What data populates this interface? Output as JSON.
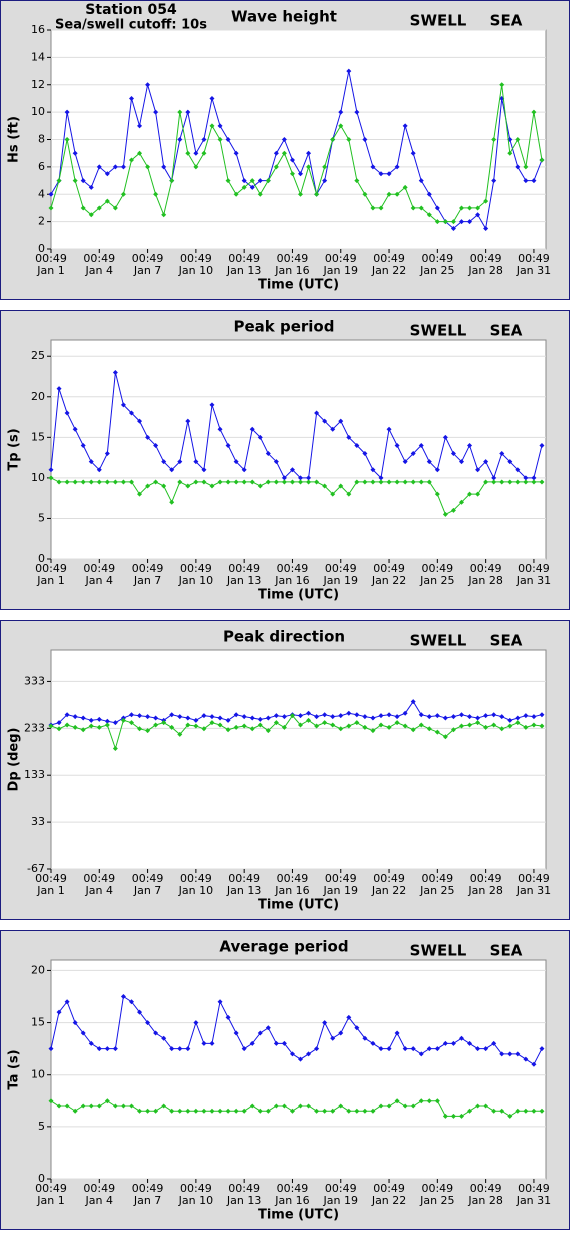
{
  "chart_data": [
    {
      "type": "line",
      "title": "Wave height",
      "ylabel": "Hs (ft)",
      "xlabel": "Time (UTC)",
      "annotations": [
        "Station 054",
        "Sea/swell cutoff: 10s"
      ],
      "grid": true,
      "xlim": [
        1,
        31.75
      ],
      "ylim": [
        0,
        16
      ],
      "yticks": [
        0,
        2,
        4,
        6,
        8,
        10,
        12,
        14,
        16
      ],
      "xticks": [
        {
          "value": 1,
          "label": "00:49\nJan 1"
        },
        {
          "value": 4,
          "label": "00:49\nJan 4"
        },
        {
          "value": 7,
          "label": "00:49\nJan 7"
        },
        {
          "value": 10,
          "label": "00:49\nJan 10"
        },
        {
          "value": 13,
          "label": "00:49\nJan 13"
        },
        {
          "value": 16,
          "label": "00:49\nJan 16"
        },
        {
          "value": 19,
          "label": "00:49\nJan 19"
        },
        {
          "value": 22,
          "label": "00:49\nJan 22"
        },
        {
          "value": 25,
          "label": "00:49\nJan 25"
        },
        {
          "value": 28,
          "label": "00:49\nJan 28"
        },
        {
          "value": 31,
          "label": "00:49\nJan 31"
        }
      ],
      "x": [
        1,
        1.5,
        2,
        2.5,
        3,
        3.5,
        4,
        4.5,
        5,
        5.5,
        6,
        6.5,
        7,
        7.5,
        8,
        8.5,
        9,
        9.5,
        10,
        10.5,
        11,
        11.5,
        12,
        12.5,
        13,
        13.5,
        14,
        14.5,
        15,
        15.5,
        16,
        16.5,
        17,
        17.5,
        18,
        18.5,
        19,
        19.5,
        20,
        20.5,
        21,
        21.5,
        22,
        22.5,
        23,
        23.5,
        24,
        24.5,
        25,
        25.5,
        26,
        26.5,
        27,
        27.5,
        28,
        28.5,
        29,
        29.5,
        30,
        30.5,
        31,
        31.5
      ],
      "series": [
        {
          "name": "SWELL",
          "color": "#1515e6",
          "values": [
            4,
            5,
            10,
            7,
            5,
            4.5,
            6,
            5.5,
            6,
            6,
            11,
            9,
            12,
            10,
            6,
            5,
            8,
            10,
            7,
            8,
            11,
            9,
            8,
            7,
            5,
            4.5,
            5,
            5,
            7,
            8,
            6.5,
            5.5,
            7,
            4,
            5,
            8,
            10,
            13,
            10,
            8,
            6,
            5.5,
            5.5,
            6,
            9,
            7,
            5,
            4,
            3,
            2,
            1.5,
            2,
            2,
            2.5,
            1.5,
            5,
            11,
            8,
            6,
            5,
            5,
            6.5
          ]
        },
        {
          "name": "SEA",
          "color": "#22c022",
          "values": [
            3,
            5,
            8,
            5,
            3,
            2.5,
            3,
            3.5,
            3,
            4,
            6.5,
            7,
            6,
            4,
            2.5,
            5,
            10,
            7,
            6,
            7,
            9,
            8,
            5,
            4,
            4.5,
            5,
            4,
            5,
            6,
            7,
            5.5,
            4,
            6,
            4,
            6,
            8,
            9,
            8,
            5,
            4,
            3,
            3,
            4,
            4,
            4.5,
            3,
            3,
            2.5,
            2,
            2,
            2,
            3,
            3,
            3,
            3.5,
            8,
            12,
            7,
            8,
            6,
            10,
            6.5
          ]
        }
      ]
    },
    {
      "type": "line",
      "title": "Peak period",
      "ylabel": "Tp (s)",
      "xlabel": "Time (UTC)",
      "grid": true,
      "xlim": [
        1,
        31.75
      ],
      "ylim": [
        0,
        27
      ],
      "yticks": [
        0,
        5,
        10,
        15,
        20,
        25
      ],
      "xticks": [
        {
          "value": 1,
          "label": "00:49\nJan 1"
        },
        {
          "value": 4,
          "label": "00:49\nJan 4"
        },
        {
          "value": 7,
          "label": "00:49\nJan 7"
        },
        {
          "value": 10,
          "label": "00:49\nJan 10"
        },
        {
          "value": 13,
          "label": "00:49\nJan 13"
        },
        {
          "value": 16,
          "label": "00:49\nJan 16"
        },
        {
          "value": 19,
          "label": "00:49\nJan 19"
        },
        {
          "value": 22,
          "label": "00:49\nJan 22"
        },
        {
          "value": 25,
          "label": "00:49\nJan 25"
        },
        {
          "value": 28,
          "label": "00:49\nJan 28"
        },
        {
          "value": 31,
          "label": "00:49\nJan 31"
        }
      ],
      "x": [
        1,
        1.5,
        2,
        2.5,
        3,
        3.5,
        4,
        4.5,
        5,
        5.5,
        6,
        6.5,
        7,
        7.5,
        8,
        8.5,
        9,
        9.5,
        10,
        10.5,
        11,
        11.5,
        12,
        12.5,
        13,
        13.5,
        14,
        14.5,
        15,
        15.5,
        16,
        16.5,
        17,
        17.5,
        18,
        18.5,
        19,
        19.5,
        20,
        20.5,
        21,
        21.5,
        22,
        22.5,
        23,
        23.5,
        24,
        24.5,
        25,
        25.5,
        26,
        26.5,
        27,
        27.5,
        28,
        28.5,
        29,
        29.5,
        30,
        30.5,
        31,
        31.5
      ],
      "series": [
        {
          "name": "SWELL",
          "color": "#1515e6",
          "values": [
            11,
            21,
            18,
            16,
            14,
            12,
            11,
            13,
            23,
            19,
            18,
            17,
            15,
            14,
            12,
            11,
            12,
            17,
            12,
            11,
            19,
            16,
            14,
            12,
            11,
            16,
            15,
            13,
            12,
            10,
            11,
            10,
            10,
            18,
            17,
            16,
            17,
            15,
            14,
            13,
            11,
            10,
            16,
            14,
            12,
            13,
            14,
            12,
            11,
            15,
            13,
            12,
            14,
            11,
            12,
            10,
            13,
            12,
            11,
            10,
            10,
            14
          ]
        },
        {
          "name": "SEA",
          "color": "#22c022",
          "values": [
            10,
            9.5,
            9.5,
            9.5,
            9.5,
            9.5,
            9.5,
            9.5,
            9.5,
            9.5,
            9.5,
            8,
            9,
            9.5,
            9,
            7,
            9.5,
            9,
            9.5,
            9.5,
            9,
            9.5,
            9.5,
            9.5,
            9.5,
            9.5,
            9,
            9.5,
            9.5,
            9.5,
            9.5,
            9.5,
            9.5,
            9.5,
            9,
            8,
            9,
            8,
            9.5,
            9.5,
            9.5,
            9.5,
            9.5,
            9.5,
            9.5,
            9.5,
            9.5,
            9.5,
            8,
            5.5,
            6,
            7,
            8,
            8,
            9.5,
            9.5,
            9.5,
            9.5,
            9.5,
            9.5,
            9.5,
            9.5
          ]
        }
      ]
    },
    {
      "type": "line",
      "title": "Peak direction",
      "ylabel": "Dp (deg)",
      "xlabel": "Time (UTC)",
      "grid": true,
      "xlim": [
        1,
        31.75
      ],
      "ylim": [
        -67,
        400
      ],
      "yticks": [
        -67,
        33,
        133,
        233,
        333
      ],
      "xticks": [
        {
          "value": 1,
          "label": "00:49\nJan 1"
        },
        {
          "value": 4,
          "label": "00:49\nJan 4"
        },
        {
          "value": 7,
          "label": "00:49\nJan 7"
        },
        {
          "value": 10,
          "label": "00:49\nJan 10"
        },
        {
          "value": 13,
          "label": "00:49\nJan 13"
        },
        {
          "value": 16,
          "label": "00:49\nJan 16"
        },
        {
          "value": 19,
          "label": "00:49\nJan 19"
        },
        {
          "value": 22,
          "label": "00:49\nJan 22"
        },
        {
          "value": 25,
          "label": "00:49\nJan 25"
        },
        {
          "value": 28,
          "label": "00:49\nJan 28"
        },
        {
          "value": 31,
          "label": "00:49\nJan 31"
        }
      ],
      "x": [
        1,
        1.5,
        2,
        2.5,
        3,
        3.5,
        4,
        4.5,
        5,
        5.5,
        6,
        6.5,
        7,
        7.5,
        8,
        8.5,
        9,
        9.5,
        10,
        10.5,
        11,
        11.5,
        12,
        12.5,
        13,
        13.5,
        14,
        14.5,
        15,
        15.5,
        16,
        16.5,
        17,
        17.5,
        18,
        18.5,
        19,
        19.5,
        20,
        20.5,
        21,
        21.5,
        22,
        22.5,
        23,
        23.5,
        24,
        24.5,
        25,
        25.5,
        26,
        26.5,
        27,
        27.5,
        28,
        28.5,
        29,
        29.5,
        30,
        30.5,
        31,
        31.5
      ],
      "series": [
        {
          "name": "SWELL",
          "color": "#1515e6",
          "values": [
            240,
            245,
            262,
            258,
            255,
            250,
            252,
            248,
            245,
            255,
            262,
            260,
            258,
            255,
            250,
            262,
            258,
            255,
            250,
            260,
            258,
            255,
            250,
            262,
            258,
            255,
            252,
            255,
            260,
            258,
            262,
            260,
            265,
            258,
            262,
            258,
            260,
            265,
            262,
            258,
            255,
            260,
            262,
            258,
            265,
            290,
            262,
            258,
            260,
            255,
            258,
            262,
            258,
            255,
            260,
            262,
            258,
            250,
            255,
            260,
            258,
            262
          ]
        },
        {
          "name": "SEA",
          "color": "#22c022",
          "values": [
            238,
            232,
            240,
            235,
            230,
            238,
            235,
            240,
            190,
            250,
            245,
            232,
            228,
            240,
            245,
            235,
            220,
            240,
            238,
            232,
            245,
            240,
            230,
            235,
            238,
            232,
            240,
            228,
            245,
            235,
            260,
            240,
            250,
            238,
            245,
            240,
            232,
            238,
            245,
            235,
            228,
            240,
            235,
            245,
            238,
            230,
            240,
            232,
            225,
            215,
            230,
            238,
            240,
            245,
            235,
            240,
            232,
            238,
            245,
            235,
            240,
            238
          ]
        }
      ]
    },
    {
      "type": "line",
      "title": "Average period",
      "ylabel": "Ta (s)",
      "xlabel": "Time (UTC)",
      "grid": true,
      "xlim": [
        1,
        31.75
      ],
      "ylim": [
        0,
        21
      ],
      "yticks": [
        0,
        5,
        10,
        15,
        20
      ],
      "xticks": [
        {
          "value": 1,
          "label": "00:49\nJan 1"
        },
        {
          "value": 4,
          "label": "00:49\nJan 4"
        },
        {
          "value": 7,
          "label": "00:49\nJan 7"
        },
        {
          "value": 10,
          "label": "00:49\nJan 10"
        },
        {
          "value": 13,
          "label": "00:49\nJan 13"
        },
        {
          "value": 16,
          "label": "00:49\nJan 16"
        },
        {
          "value": 19,
          "label": "00:49\nJan 19"
        },
        {
          "value": 22,
          "label": "00:49\nJan 22"
        },
        {
          "value": 25,
          "label": "00:49\nJan 25"
        },
        {
          "value": 28,
          "label": "00:49\nJan 28"
        },
        {
          "value": 31,
          "label": "00:49\nJan 31"
        }
      ],
      "x": [
        1,
        1.5,
        2,
        2.5,
        3,
        3.5,
        4,
        4.5,
        5,
        5.5,
        6,
        6.5,
        7,
        7.5,
        8,
        8.5,
        9,
        9.5,
        10,
        10.5,
        11,
        11.5,
        12,
        12.5,
        13,
        13.5,
        14,
        14.5,
        15,
        15.5,
        16,
        16.5,
        17,
        17.5,
        18,
        18.5,
        19,
        19.5,
        20,
        20.5,
        21,
        21.5,
        22,
        22.5,
        23,
        23.5,
        24,
        24.5,
        25,
        25.5,
        26,
        26.5,
        27,
        27.5,
        28,
        28.5,
        29,
        29.5,
        30,
        30.5,
        31,
        31.5
      ],
      "series": [
        {
          "name": "SWELL",
          "color": "#1515e6",
          "values": [
            12.5,
            16,
            17,
            15,
            14,
            13,
            12.5,
            12.5,
            12.5,
            17.5,
            17,
            16,
            15,
            14,
            13.5,
            12.5,
            12.5,
            12.5,
            15,
            13,
            13,
            17,
            15.5,
            14,
            12.5,
            13,
            14,
            14.5,
            13,
            13,
            12,
            11.5,
            12,
            12.5,
            15,
            13.5,
            14,
            15.5,
            14.5,
            13.5,
            13,
            12.5,
            12.5,
            14,
            12.5,
            12.5,
            12,
            12.5,
            12.5,
            13,
            13,
            13.5,
            13,
            12.5,
            12.5,
            13,
            12,
            12,
            12,
            11.5,
            11,
            12.5
          ]
        },
        {
          "name": "SEA",
          "color": "#22c022",
          "values": [
            7.5,
            7,
            7,
            6.5,
            7,
            7,
            7,
            7.5,
            7,
            7,
            7,
            6.5,
            6.5,
            6.5,
            7,
            6.5,
            6.5,
            6.5,
            6.5,
            6.5,
            6.5,
            6.5,
            6.5,
            6.5,
            6.5,
            7,
            6.5,
            6.5,
            7,
            7,
            6.5,
            7,
            7,
            6.5,
            6.5,
            6.5,
            7,
            6.5,
            6.5,
            6.5,
            6.5,
            7,
            7,
            7.5,
            7,
            7,
            7.5,
            7.5,
            7.5,
            6,
            6,
            6,
            6.5,
            7,
            7,
            6.5,
            6.5,
            6,
            6.5,
            6.5,
            6.5,
            6.5
          ]
        }
      ]
    }
  ]
}
